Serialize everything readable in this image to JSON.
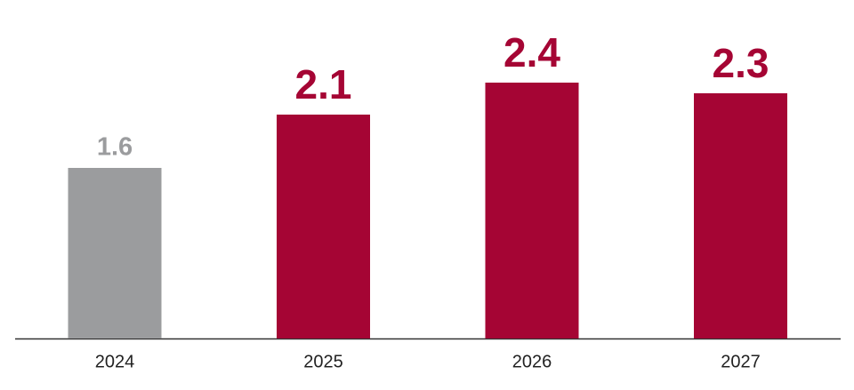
{
  "chart_data": {
    "type": "bar",
    "categories": [
      "2024",
      "2025",
      "2026",
      "2027"
    ],
    "values": [
      1.6,
      2.1,
      2.4,
      2.3
    ],
    "colors": [
      "#9b9c9e",
      "#a50534",
      "#a50534",
      "#a50534"
    ]
  }
}
